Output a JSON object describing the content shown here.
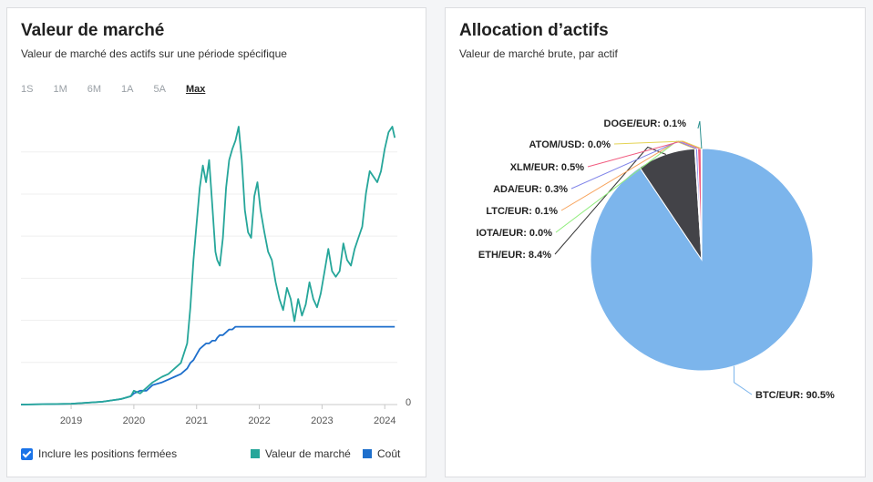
{
  "left": {
    "title": "Valeur de marché",
    "subtitle": "Valeur de marché des actifs sur une période spécifique",
    "ranges": [
      "1S",
      "1M",
      "6M",
      "1A",
      "5A",
      "Max"
    ],
    "active_range": "Max",
    "checkbox_label": "Inclure les positions fermées",
    "legend_market": "Valeur de marché",
    "legend_cost": "Coût",
    "colors": {
      "market": "#26a69a",
      "cost": "#1e6fcc"
    }
  },
  "right": {
    "title": "Allocation d’actifs",
    "subtitle": "Valeur de marché brute, par actif"
  },
  "chart_data": [
    {
      "type": "line",
      "title": "Valeur de marché",
      "x_tick_labels": [
        "2019",
        "2020",
        "2021",
        "2022",
        "2023",
        "2024"
      ],
      "y_tick_labels": [
        "0"
      ],
      "ylim": [
        0,
        100
      ],
      "x": [
        2018.2,
        2019.0,
        2019.5,
        2019.8,
        2019.95,
        2020.0,
        2020.1,
        2020.2,
        2020.3,
        2020.45,
        2020.55,
        2020.65,
        2020.75,
        2020.85,
        2020.9,
        2020.95,
        2021.0,
        2021.05,
        2021.1,
        2021.15,
        2021.2,
        2021.25,
        2021.3,
        2021.33,
        2021.37,
        2021.42,
        2021.47,
        2021.52,
        2021.57,
        2021.62,
        2021.67,
        2021.72,
        2021.77,
        2021.82,
        2021.87,
        2021.92,
        2021.97,
        2022.02,
        2022.08,
        2022.14,
        2022.2,
        2022.26,
        2022.32,
        2022.38,
        2022.44,
        2022.5,
        2022.56,
        2022.62,
        2022.68,
        2022.74,
        2022.8,
        2022.86,
        2022.92,
        2022.98,
        2023.04,
        2023.1,
        2023.16,
        2023.22,
        2023.28,
        2023.34,
        2023.4,
        2023.46,
        2023.52,
        2023.58,
        2023.64,
        2023.7,
        2023.76,
        2023.82,
        2023.88,
        2023.94,
        2024.0,
        2024.06,
        2024.12,
        2024.16
      ],
      "series": [
        {
          "name": "Valeur de marché",
          "values": [
            0,
            0.3,
            1,
            2,
            3,
            5,
            4,
            6,
            8,
            10,
            11,
            13,
            15,
            22,
            35,
            52,
            65,
            78,
            86,
            80,
            88,
            72,
            55,
            52,
            50,
            60,
            78,
            88,
            92,
            95,
            100,
            88,
            70,
            62,
            60,
            75,
            80,
            70,
            62,
            55,
            52,
            44,
            38,
            34,
            42,
            38,
            30,
            38,
            32,
            36,
            44,
            38,
            35,
            40,
            48,
            56,
            48,
            46,
            48,
            58,
            52,
            50,
            56,
            60,
            64,
            76,
            84,
            82,
            80,
            84,
            92,
            98,
            100,
            96
          ],
          "note": "values in percent of chart height"
        },
        {
          "name": "Coût",
          "values": [
            0,
            0.3,
            1,
            2,
            3,
            4,
            5,
            5,
            7,
            8,
            9,
            10,
            11,
            13,
            15,
            16,
            18,
            20,
            21,
            22,
            22,
            23,
            23,
            24,
            25,
            25,
            26,
            27,
            27,
            28,
            28,
            28,
            28,
            28,
            28,
            28,
            28,
            28,
            28,
            28,
            28,
            28,
            28,
            28,
            28,
            28,
            28,
            28,
            28,
            28,
            28,
            28,
            28,
            28,
            28,
            28,
            28,
            28,
            28,
            28,
            28,
            28,
            28,
            28,
            28,
            28,
            28,
            28,
            28,
            28,
            28,
            28,
            28,
            28
          ]
        }
      ]
    },
    {
      "type": "pie",
      "title": "Allocation d’actifs",
      "categories": [
        "BTC/EUR",
        "ETH/EUR",
        "IOTA/EUR",
        "LTC/EUR",
        "ADA/EUR",
        "XLM/EUR",
        "ATOM/USD",
        "DOGE/EUR"
      ],
      "values": [
        90.5,
        8.4,
        0.0,
        0.1,
        0.3,
        0.5,
        0.0,
        0.1
      ],
      "labels": [
        "BTC/EUR: 90.5%",
        "ETH/EUR: 8.4%",
        "IOTA/EUR: 0.0%",
        "LTC/EUR: 0.1%",
        "ADA/EUR: 0.3%",
        "XLM/EUR: 0.5%",
        "ATOM/USD: 0.0%",
        "DOGE/EUR: 0.1%"
      ],
      "colors": [
        "#7cb5ec",
        "#434348",
        "#90ed7d",
        "#f7a35c",
        "#8085e9",
        "#f15c80",
        "#e4d354",
        "#2b908f"
      ]
    }
  ]
}
